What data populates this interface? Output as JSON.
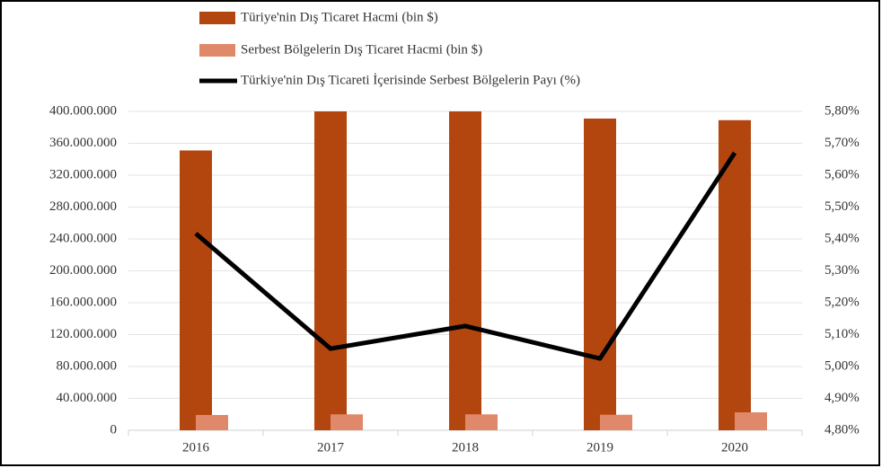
{
  "chart_data": {
    "type": "bar_line",
    "categories": [
      "2016",
      "2017",
      "2018",
      "2019",
      "2020"
    ],
    "series": [
      {
        "name": "Türiye'nin Dış Ticaret Hacmi (bin $)",
        "color": "#b3460f",
        "type": "bar",
        "values": [
          351000000,
          403000000,
          408000000,
          391000000,
          389000000
        ]
      },
      {
        "name": "Serbest Bölgelerin Dış Ticaret Hacmi (bin $)",
        "color": "#e0896a",
        "type": "bar",
        "values": [
          19200000,
          20000000,
          20000000,
          19500000,
          22500000
        ]
      },
      {
        "name": "Türkiye'nin Dış Ticareti İçerisinde Serbest Bölgelerin Payı (%)",
        "color": "#000000",
        "type": "line",
        "axis": "y2",
        "values": [
          5.417,
          5.056,
          5.127,
          5.025,
          5.67
        ]
      }
    ],
    "ylim": [
      0,
      400000000
    ],
    "yticks": [
      0,
      {
        "value": 40000000,
        "label": "40.000.000"
      },
      {
        "value": 80000000,
        "label": "80.000.000"
      },
      {
        "value": 120000000,
        "label": "120.000.000"
      },
      {
        "value": 160000000,
        "label": "160.000.000"
      },
      {
        "value": 200000000,
        "label": "200.000.000"
      },
      {
        "value": 240000000,
        "label": "240.000.000"
      },
      {
        "value": 280000000,
        "label": "280.000.000"
      },
      {
        "value": 320000000,
        "label": "320.000.000"
      },
      {
        "value": 360000000,
        "label": "360.000.000"
      },
      {
        "value": 400000000,
        "label": "400.000.000"
      }
    ],
    "y2lim": [
      4.8,
      5.8
    ],
    "y2ticks": [
      {
        "value": 4.8,
        "label": "4,80%"
      },
      {
        "value": 4.9,
        "label": "4,90%"
      },
      {
        "value": 5.0,
        "label": "5,00%"
      },
      {
        "value": 5.1,
        "label": "5,10%"
      },
      {
        "value": 5.2,
        "label": "5,20%"
      },
      {
        "value": 5.3,
        "label": "5,30%"
      },
      {
        "value": 5.4,
        "label": "5,40%"
      },
      {
        "value": 5.5,
        "label": "5,50%"
      },
      {
        "value": 5.6,
        "label": "5,60%"
      },
      {
        "value": 5.7,
        "label": "5,70%"
      },
      {
        "value": 5.8,
        "label": "5,80%"
      }
    ],
    "grid": true,
    "legend": "top"
  }
}
